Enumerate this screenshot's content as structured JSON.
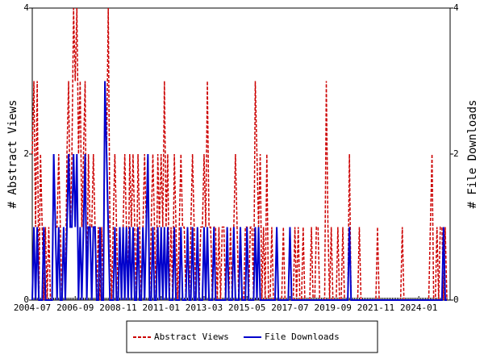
{
  "chart_data": {
    "type": "line",
    "categories": [
      "2004-07",
      null,
      null,
      null,
      null,
      null,
      null,
      null,
      null,
      null,
      null,
      null,
      null,
      null,
      null,
      null,
      null,
      null,
      null,
      null,
      null,
      null,
      null,
      null,
      null,
      null,
      "2006-09",
      null,
      null,
      null,
      null,
      null,
      null,
      null,
      null,
      null,
      null,
      null,
      null,
      null,
      null,
      null,
      null,
      null,
      null,
      null,
      null,
      null,
      null,
      null,
      null,
      null,
      "2008-11",
      null,
      null,
      null,
      null,
      null,
      null,
      null,
      null,
      null,
      null,
      null,
      null,
      null,
      null,
      null,
      null,
      null,
      null,
      null,
      null,
      null,
      null,
      null,
      null,
      null,
      "2011-01",
      null,
      null,
      null,
      null,
      null,
      null,
      null,
      null,
      null,
      null,
      null,
      null,
      null,
      null,
      null,
      null,
      null,
      null,
      null,
      null,
      null,
      null,
      null,
      null,
      null,
      "2013-03",
      null,
      null,
      null,
      null,
      null,
      null,
      null,
      null,
      null,
      null,
      null,
      null,
      null,
      null,
      null,
      null,
      null,
      null,
      null,
      null,
      null,
      null,
      null,
      null,
      null,
      "2015-05",
      null,
      null,
      null,
      null,
      null,
      null,
      null,
      null,
      null,
      null,
      null,
      null,
      null,
      null,
      null,
      null,
      null,
      null,
      null,
      null,
      null,
      null,
      null,
      null,
      null,
      "2017-07",
      null,
      null,
      null,
      null,
      null,
      null,
      null,
      null,
      null,
      null,
      null,
      null,
      null,
      null,
      null,
      null,
      null,
      null,
      null,
      null,
      null,
      null,
      null,
      null,
      null,
      "2019-09",
      null,
      null,
      null,
      null,
      null,
      null,
      null,
      null,
      null,
      null,
      null,
      null,
      null,
      null,
      null,
      null,
      null,
      null,
      null,
      null,
      null,
      null,
      null,
      null,
      null,
      "2021-11",
      null,
      null,
      null,
      null,
      null,
      null,
      null,
      null,
      null,
      null,
      null,
      null,
      null,
      null,
      null,
      null,
      null,
      null,
      null,
      null,
      null,
      null,
      null,
      null,
      null,
      "2024-01",
      null,
      null,
      null,
      null,
      null,
      null,
      null,
      null,
      null,
      null,
      null,
      null,
      null,
      null,
      null,
      null,
      null
    ],
    "series": [
      {
        "name": "Abstract Views",
        "color": "#cc0000",
        "axis": "y",
        "values": [
          2,
          3,
          1,
          3,
          0,
          2,
          1,
          0,
          1,
          0,
          1,
          0,
          0,
          2,
          1,
          1,
          2,
          1,
          0,
          1,
          0,
          2,
          3,
          1,
          2,
          4,
          3,
          4,
          2,
          3,
          1,
          2,
          3,
          0,
          2,
          1,
          1,
          2,
          1,
          0,
          1,
          0,
          1,
          0,
          3,
          2,
          4,
          1,
          0,
          1,
          2,
          1,
          0,
          1,
          0,
          1,
          2,
          1,
          0,
          2,
          1,
          2,
          1,
          0,
          2,
          1,
          0,
          1,
          2,
          1,
          2,
          0,
          1,
          2,
          1,
          0,
          2,
          1,
          2,
          1,
          3,
          1,
          2,
          0,
          1,
          0,
          2,
          1,
          0,
          1,
          2,
          1,
          1,
          0,
          1,
          0,
          1,
          2,
          1,
          0,
          1,
          0,
          1,
          1,
          2,
          1,
          3,
          1,
          1,
          0,
          1,
          1,
          0,
          1,
          0,
          1,
          1,
          0,
          1,
          0,
          1,
          0,
          1,
          2,
          1,
          0,
          1,
          0,
          0,
          1,
          1,
          0,
          1,
          1,
          0,
          3,
          2,
          1,
          2,
          0,
          1,
          0,
          2,
          0,
          0,
          1,
          0,
          0,
          1,
          0,
          0,
          0,
          1,
          0,
          0,
          0,
          1,
          0,
          0,
          1,
          0,
          1,
          0,
          0,
          1,
          0,
          0,
          0,
          0,
          1,
          0,
          0,
          1,
          1,
          0,
          0,
          0,
          0,
          3,
          1,
          0,
          1,
          0,
          0,
          0,
          1,
          0,
          0,
          1,
          0,
          0,
          0,
          2,
          0,
          0,
          0,
          0,
          0,
          1,
          0,
          0,
          0,
          0,
          0,
          0,
          0,
          0,
          0,
          0,
          1,
          0,
          0,
          0,
          0,
          0,
          0,
          0,
          0,
          0,
          0,
          0,
          0,
          0,
          0,
          1,
          0,
          0,
          0,
          0,
          0,
          0,
          0,
          0,
          0,
          0,
          0,
          0,
          0,
          0,
          0,
          0,
          1,
          2,
          0,
          0,
          1,
          0,
          1,
          1,
          0,
          1,
          0
        ]
      },
      {
        "name": "File Downloads",
        "color": "#0000cc",
        "axis": "y2",
        "values": [
          0,
          1,
          0,
          1,
          0,
          0,
          0,
          1,
          0,
          0,
          0,
          0,
          0,
          2,
          1,
          0,
          1,
          0,
          0,
          1,
          0,
          1,
          2,
          1,
          1,
          2,
          1,
          2,
          0,
          1,
          0,
          1,
          2,
          0,
          1,
          1,
          0,
          1,
          1,
          0,
          0,
          1,
          0,
          0,
          3,
          2,
          1,
          0,
          0,
          0,
          1,
          0,
          0,
          1,
          0,
          1,
          0,
          1,
          0,
          1,
          0,
          1,
          0,
          0,
          1,
          0,
          0,
          1,
          0,
          1,
          2,
          0,
          0,
          1,
          0,
          0,
          1,
          0,
          1,
          0,
          1,
          0,
          1,
          0,
          0,
          0,
          1,
          0,
          0,
          0,
          1,
          0,
          0,
          0,
          1,
          0,
          0,
          1,
          0,
          0,
          1,
          0,
          0,
          0,
          1,
          0,
          1,
          0,
          0,
          0,
          1,
          0,
          0,
          0,
          0,
          0,
          0,
          0,
          1,
          0,
          0,
          0,
          1,
          0,
          0,
          0,
          1,
          0,
          0,
          0,
          1,
          0,
          0,
          0,
          0,
          1,
          0,
          1,
          0,
          0,
          0,
          0,
          0,
          0,
          0,
          0,
          0,
          0,
          1,
          0,
          0,
          0,
          0,
          0,
          0,
          0,
          1,
          0,
          0,
          0,
          0,
          0,
          0,
          0,
          0,
          0,
          0,
          0,
          0,
          0,
          0,
          0,
          0,
          0,
          0,
          0,
          0,
          0,
          0,
          0,
          0,
          0,
          0,
          0,
          0,
          0,
          0,
          0,
          0,
          0,
          0,
          0,
          1,
          0,
          0,
          0,
          0,
          0,
          0,
          0,
          0,
          0,
          0,
          0,
          0,
          0,
          0,
          0,
          0,
          0,
          0,
          0,
          0,
          0,
          0,
          0,
          0,
          0,
          0,
          0,
          0,
          0,
          0,
          0,
          0,
          0,
          0,
          0,
          0,
          0,
          0,
          0,
          0,
          0,
          0,
          0,
          0,
          0,
          0,
          0,
          0,
          0,
          0,
          0,
          0,
          0,
          0,
          0,
          0,
          1,
          0,
          0
        ]
      }
    ],
    "ylabel": "# Abstract Views",
    "y2label": "# File Downloads",
    "ylim": [
      0,
      4
    ],
    "yticks": [
      0,
      2,
      4
    ],
    "y2lim": [
      0,
      4
    ],
    "y2ticks": [
      0,
      2,
      4
    ],
    "legend": "bottom",
    "grid": false
  }
}
